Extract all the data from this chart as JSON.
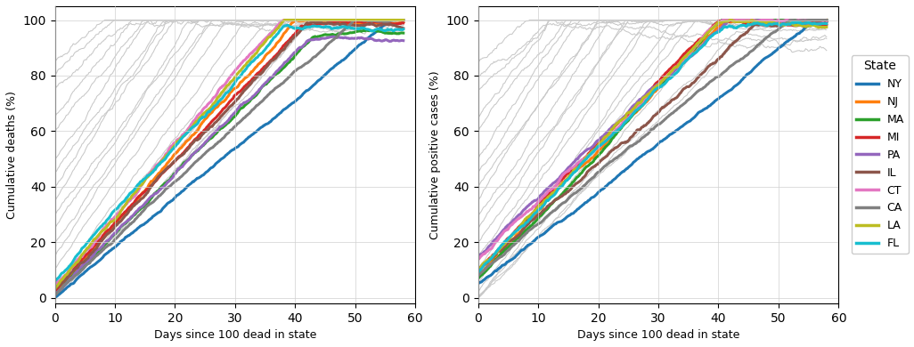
{
  "states": [
    "NY",
    "NJ",
    "MA",
    "MI",
    "PA",
    "IL",
    "CT",
    "CA",
    "LA",
    "FL"
  ],
  "colors": {
    "NY": "#1f77b4",
    "NJ": "#ff7f0e",
    "MA": "#2ca02c",
    "MI": "#d62728",
    "PA": "#9467bd",
    "IL": "#8c564b",
    "CT": "#e377c2",
    "CA": "#808080",
    "LA": "#bcbd22",
    "FL": "#17becf"
  },
  "xlabel": "Days since 100 dead in state",
  "ylabel_left": "Cumulative deaths (%)",
  "ylabel_right": "Cumulative positive cases (%)",
  "xlim": [
    0,
    60
  ],
  "ylim": [
    -2,
    105
  ],
  "legend_title": "State",
  "n_bg_lines": 20,
  "lw_highlight": 2.2,
  "lw_bg": 0.75
}
